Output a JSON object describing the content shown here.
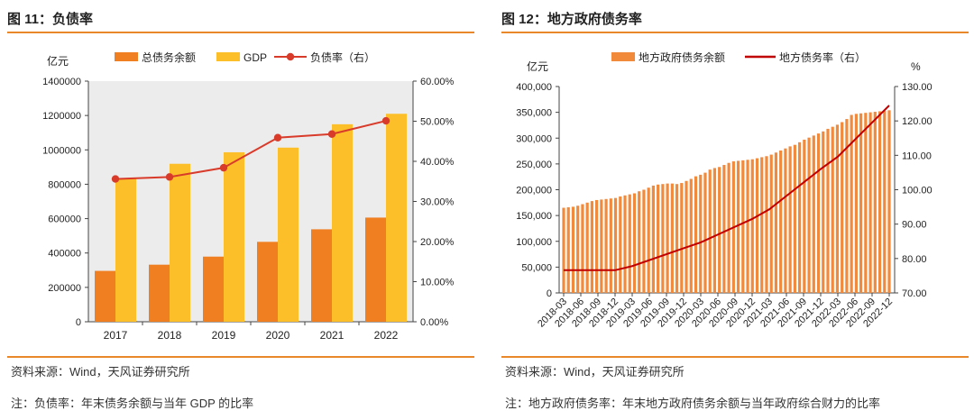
{
  "left": {
    "title": "图 11：负债率",
    "source": "资料来源：Wind，天风证券研究所",
    "note": "注：负债率：年末债务余额与当年 GDP 的比率"
  },
  "right": {
    "title": "图 12：地方政府债务率",
    "source": "资料来源：Wind，天风证券研究所",
    "note": "注：地方政府债务率：年末地方政府债务余额与当年政府综合财力的比率"
  },
  "chart_data": [
    {
      "type": "bar",
      "categories": [
        "2017",
        "2018",
        "2019",
        "2020",
        "2021",
        "2022"
      ],
      "y_left_unit": "亿元",
      "y_left_ticks": [
        "0",
        "200000",
        "400000",
        "600000",
        "800000",
        "1000000",
        "1200000",
        "1400000"
      ],
      "y_right_ticks": [
        "0.00%",
        "10.00%",
        "20.00%",
        "30.00%",
        "40.00%",
        "50.00%",
        "60.00%"
      ],
      "ylim_left": [
        0,
        1400000
      ],
      "ylim_right": [
        0,
        60
      ],
      "legend_position": "top",
      "grid": false,
      "series": [
        {
          "name": "总债务余额",
          "kind": "bar",
          "axis": "left",
          "color": "#f07f22",
          "values": [
            296000,
            332000,
            379000,
            465000,
            538000,
            606000
          ]
        },
        {
          "name": "GDP",
          "kind": "bar",
          "axis": "left",
          "color": "#fcbf2a",
          "values": [
            832000,
            919000,
            986000,
            1013000,
            1149000,
            1210000
          ]
        },
        {
          "name": "负债率（右）",
          "kind": "line",
          "axis": "right",
          "color": "#d93b2b",
          "values": [
            35.6,
            36.1,
            38.4,
            45.9,
            46.8,
            50.1
          ]
        }
      ]
    },
    {
      "type": "bar",
      "x_ticks": [
        "2018-03",
        "2018-06",
        "2018-09",
        "2018-12",
        "2019-03",
        "2019-06",
        "2019-09",
        "2019-12",
        "2020-03",
        "2020-06",
        "2020-09",
        "2020-12",
        "2021-03",
        "2021-06",
        "2021-09",
        "2021-12",
        "2022-03",
        "2022-06",
        "2022-09",
        "2022-12"
      ],
      "y_left_unit": "亿元",
      "y_right_unit": "%",
      "y_left_ticks": [
        "0",
        "50,000",
        "100,000",
        "150,000",
        "200,000",
        "250,000",
        "300,000",
        "350,000",
        "400,000"
      ],
      "y_right_ticks": [
        "70.00",
        "80.00",
        "90.00",
        "100.00",
        "110.00",
        "120.00",
        "130.00"
      ],
      "ylim_left": [
        0,
        400000
      ],
      "ylim_right": [
        70,
        130
      ],
      "legend_position": "top",
      "grid": false,
      "series": [
        {
          "name": "地方政府债务余额",
          "kind": "bar",
          "axis": "left",
          "color": "#f28a3c",
          "values": [
            165000,
            166000,
            167000,
            169000,
            172000,
            175000,
            178000,
            180000,
            181000,
            182000,
            183000,
            184000,
            187000,
            189000,
            191000,
            193000,
            197000,
            200000,
            204000,
            208000,
            210000,
            211000,
            212000,
            212000,
            211000,
            213000,
            217000,
            221000,
            226000,
            229000,
            233000,
            239000,
            242000,
            244000,
            248000,
            252000,
            255000,
            256000,
            257000,
            258000,
            259000,
            261000,
            263000,
            265000,
            268000,
            272000,
            276000,
            280000,
            284000,
            287000,
            292000,
            297000,
            301000,
            305000,
            309000,
            313000,
            318000,
            322000,
            326000,
            331000,
            337000,
            345000,
            347000,
            348000,
            349000,
            350000,
            351000,
            352000,
            353000,
            354000
          ]
        },
        {
          "name": "地方债务率（右）",
          "kind": "line",
          "axis": "right",
          "color": "#c00000",
          "x_index": [
            0,
            3,
            4,
            7,
            8,
            11,
            12,
            15,
            16,
            19
          ],
          "values": [
            76.6,
            76.6,
            77.8,
            83.0,
            84.7,
            91.5,
            94.3,
            106.0,
            109.6,
            124.5
          ]
        }
      ]
    }
  ]
}
